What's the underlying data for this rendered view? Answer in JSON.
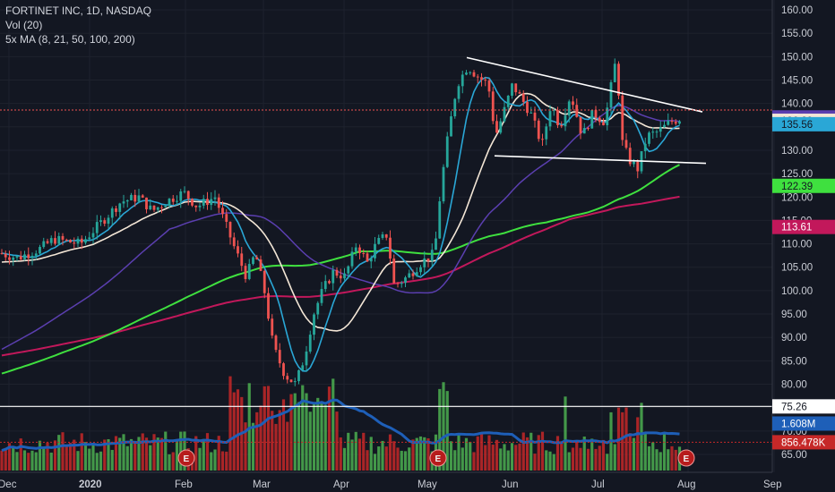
{
  "legend": {
    "symbol": "FORTINET INC, 1D, NASDAQ",
    "volume": "Vol (20)",
    "ma": "5x MA (8, 21, 50, 100, 200)"
  },
  "colors": {
    "background": "#131722",
    "up": "#26a69a",
    "down": "#ef5350",
    "vol_up": "#4caf50",
    "vol_down": "#c62828",
    "ma8": "#2aa7d6",
    "ma21": "#f3e6d6",
    "ma50": "#5b3fb0",
    "ma100": "#3fe03f",
    "ma200": "#c2185b",
    "vol_ma": "#1e5fb8",
    "trendline": "#ffffff"
  },
  "chart_data": {
    "type": "candlestick",
    "title": "FORTINET INC, 1D, NASDAQ",
    "ylim": [
      65,
      161
    ],
    "y_ticks": [
      "160.00",
      "155.00",
      "150.00",
      "145.00",
      "140.00",
      "135.00",
      "130.00",
      "125.00",
      "120.00",
      "115.00",
      "110.00",
      "105.00",
      "100.00",
      "95.00",
      "90.00",
      "85.00",
      "80.00",
      "75.00",
      "70.00",
      "65.00"
    ],
    "x_ticks": [
      {
        "label": "Dec",
        "bold": false
      },
      {
        "label": "2020",
        "bold": true
      },
      {
        "label": "Feb",
        "bold": false
      },
      {
        "label": "Mar",
        "bold": false
      },
      {
        "label": "Apr",
        "bold": false
      },
      {
        "label": "May",
        "bold": false
      },
      {
        "label": "Jun",
        "bold": false
      },
      {
        "label": "Jul",
        "bold": false
      },
      {
        "label": "Aug",
        "bold": false
      },
      {
        "label": "Sep",
        "bold": false
      }
    ],
    "price_tags": [
      {
        "label": "137.01",
        "value": 137.01,
        "bg": "#5b3fb0",
        "fg": "#ffffff"
      },
      {
        "label": "136.29",
        "value": 136.29,
        "bg": "#f3e6d6",
        "fg": "#131722"
      },
      {
        "label": "135.56",
        "value": 135.56,
        "bg": "#2aa7d6",
        "fg": "#131722"
      },
      {
        "label": "122.39",
        "value": 122.39,
        "bg": "#3fe03f",
        "fg": "#131722"
      },
      {
        "label": "113.61",
        "value": 113.61,
        "bg": "#c2185b",
        "fg": "#ffffff"
      },
      {
        "label": "75.26",
        "value": 75.26,
        "bg": "#ffffff",
        "fg": "#131722"
      },
      {
        "label": "1.608M",
        "value": 71.6,
        "bg": "#1e5fb8",
        "fg": "#ffffff"
      },
      {
        "label": "856.478K",
        "value": 67.6,
        "bg": "#c62828",
        "fg": "#ffffff"
      }
    ],
    "earnings_markers": [
      "E",
      "E",
      "E"
    ],
    "moving_averages": [
      "MA 8",
      "MA 21",
      "MA 50",
      "MA 100",
      "MA 200"
    ],
    "trendlines": [
      {
        "from": [
          521,
          149.8
        ],
        "to": [
          784,
          138.2
        ]
      },
      {
        "from": [
          552,
          128.8
        ],
        "to": [
          788,
          127.2
        ]
      }
    ]
  }
}
